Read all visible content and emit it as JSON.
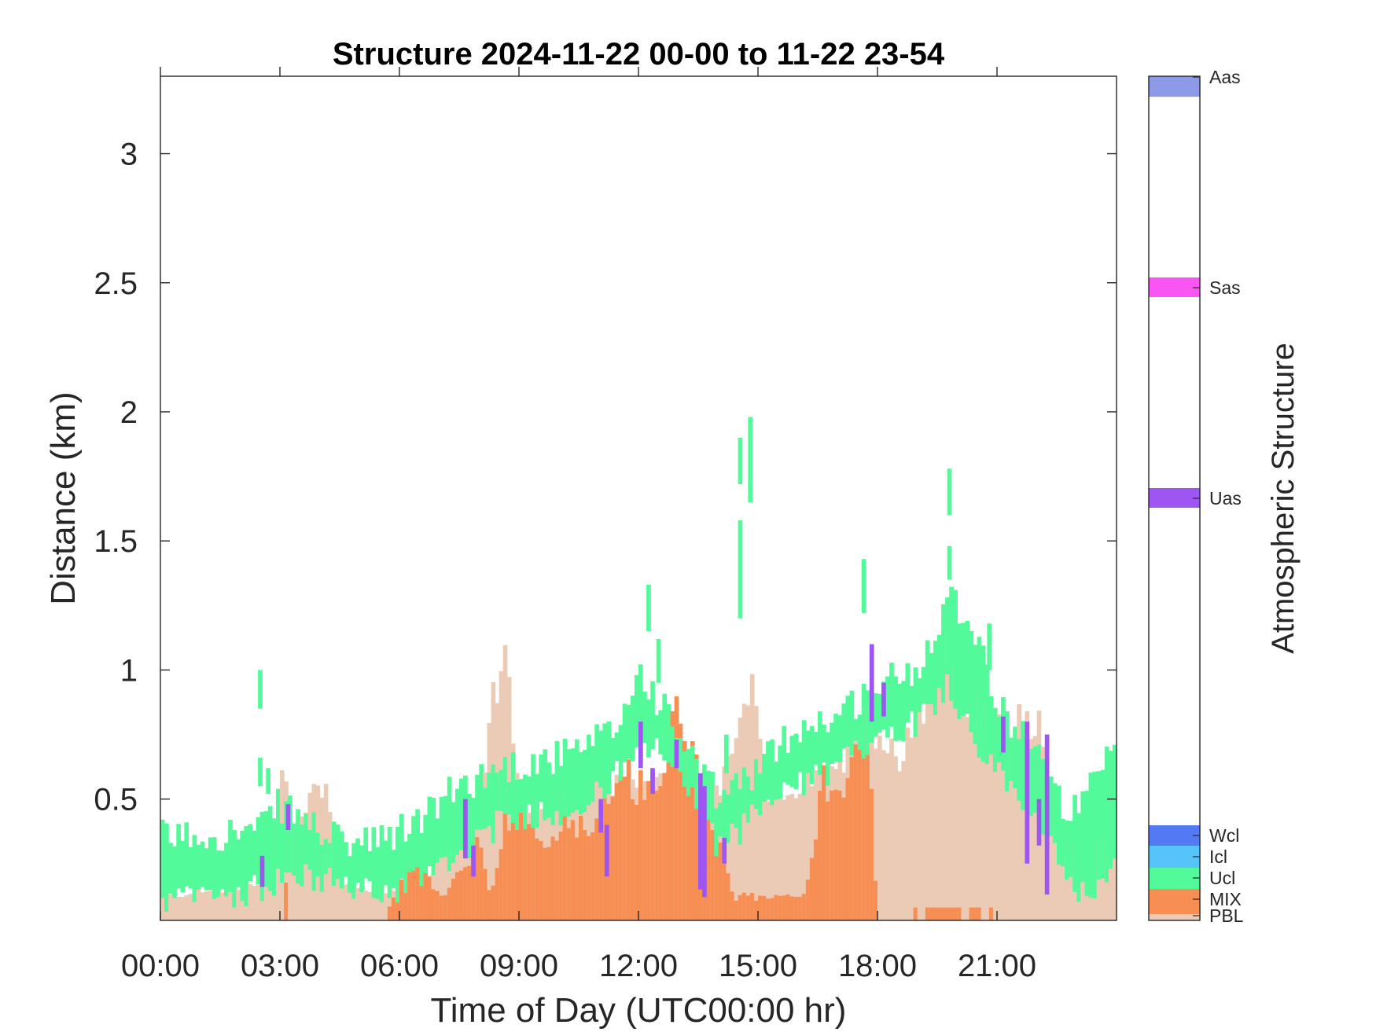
{
  "chart_data": {
    "type": "heatmap",
    "title": "Structure 2024-11-22 00-00 to 11-22 23-54",
    "xlabel": "Time of Day (UTC00:00 hr)",
    "ylabel": "Distance (km)",
    "colorbar_label": "Atmospheric Structure",
    "x_unit": "hours",
    "xlim": [
      0,
      24
    ],
    "ylim": [
      0.03,
      3.3
    ],
    "x_ticks": [
      0,
      3,
      6,
      9,
      12,
      15,
      18,
      21
    ],
    "x_tick_labels": [
      "00:00",
      "03:00",
      "06:00",
      "09:00",
      "12:00",
      "15:00",
      "18:00",
      "21:00"
    ],
    "y_ticks": [
      0.5,
      1,
      1.5,
      2,
      2.5,
      3
    ],
    "y_tick_labels": [
      "0.5",
      "1",
      "1.5",
      "2",
      "2.5",
      "3"
    ],
    "time_step_hours": 0.1,
    "grid": false,
    "classes": [
      {
        "name": "PBL",
        "color": "#EBCBB6"
      },
      {
        "name": "MIX",
        "color": "#F78F54"
      },
      {
        "name": "Ucl",
        "color": "#52FA9A"
      },
      {
        "name": "Icl",
        "color": "#57C4F9"
      },
      {
        "name": "Wcl",
        "color": "#537AF2"
      },
      {
        "name": "Uas",
        "color": "#9F55F2"
      },
      {
        "name": "Sas",
        "color": "#F955F2"
      },
      {
        "name": "Aas",
        "color": "#8C9AE7"
      }
    ],
    "colorbar_ticks": [
      "PBL",
      "MIX",
      "Ucl",
      "Icl",
      "Wcl",
      "Uas",
      "Sas",
      "Aas"
    ],
    "pbl_height_km": [
      [
        0,
        0.12
      ],
      [
        1,
        0.14
      ],
      [
        2,
        0.15
      ],
      [
        2.8,
        0.2
      ],
      [
        3.1,
        0.68
      ],
      [
        3.3,
        0.35
      ],
      [
        3.9,
        0.58
      ],
      [
        4.2,
        0.52
      ],
      [
        4.6,
        0.18
      ],
      [
        5.5,
        0.12
      ],
      [
        6.5,
        0.18
      ],
      [
        7.5,
        0.35
      ],
      [
        8.1,
        0.45
      ],
      [
        8.3,
        0.85
      ],
      [
        8.7,
        1.1
      ],
      [
        9.0,
        0.48
      ],
      [
        10,
        0.5
      ],
      [
        11,
        0.55
      ],
      [
        12,
        0.55
      ],
      [
        13,
        0.62
      ],
      [
        14,
        0.52
      ],
      [
        14.8,
        0.95
      ],
      [
        15.2,
        0.52
      ],
      [
        16,
        0.55
      ],
      [
        17,
        0.6
      ],
      [
        17.8,
        0.8
      ],
      [
        18.5,
        0.65
      ],
      [
        19,
        0.85
      ],
      [
        19.5,
        0.92
      ],
      [
        19.8,
        1.25
      ],
      [
        20.2,
        0.82
      ],
      [
        20.8,
        0.95
      ],
      [
        21.2,
        0.65
      ],
      [
        21.6,
        0.82
      ],
      [
        22.1,
        0.8
      ],
      [
        22.5,
        0.4
      ],
      [
        23.4,
        0.25
      ],
      [
        24,
        0.5
      ]
    ],
    "mix_height_km": [
      [
        0,
        0.0
      ],
      [
        3.05,
        0.0
      ],
      [
        3.1,
        0.35
      ],
      [
        3.2,
        0.0
      ],
      [
        5.6,
        0.0
      ],
      [
        5.8,
        0.1
      ],
      [
        6.5,
        0.3
      ],
      [
        7.0,
        0.12
      ],
      [
        7.5,
        0.2
      ],
      [
        8.0,
        0.32
      ],
      [
        8.3,
        0.12
      ],
      [
        8.6,
        0.4
      ],
      [
        9.2,
        0.45
      ],
      [
        9.6,
        0.3
      ],
      [
        10.2,
        0.45
      ],
      [
        10.8,
        0.35
      ],
      [
        11.4,
        0.62
      ],
      [
        12.0,
        0.55
      ],
      [
        12.6,
        0.65
      ],
      [
        13.1,
        0.9
      ],
      [
        13.3,
        0.68
      ],
      [
        13.6,
        0.55
      ],
      [
        14.0,
        0.38
      ],
      [
        14.4,
        0.12
      ],
      [
        16.2,
        0.12
      ],
      [
        16.6,
        0.55
      ],
      [
        17.3,
        0.6
      ],
      [
        17.8,
        0.8
      ],
      [
        18.0,
        0.0
      ],
      [
        24,
        0.0
      ]
    ],
    "ucl_band_km": [
      [
        0,
        0.1,
        0.35
      ],
      [
        2.5,
        0.15,
        0.38
      ],
      [
        3.0,
        0.2,
        0.48
      ],
      [
        4.5,
        0.18,
        0.33
      ],
      [
        5.5,
        0.12,
        0.33
      ],
      [
        6.5,
        0.2,
        0.42
      ],
      [
        7.5,
        0.3,
        0.55
      ],
      [
        8.5,
        0.4,
        0.62
      ],
      [
        9.5,
        0.45,
        0.65
      ],
      [
        10.5,
        0.45,
        0.68
      ],
      [
        11.5,
        0.6,
        0.78
      ],
      [
        12.0,
        0.65,
        1.0
      ],
      [
        12.5,
        0.7,
        0.88
      ],
      [
        13.5,
        0.5,
        0.62
      ],
      [
        14.0,
        0.3,
        0.5
      ],
      [
        15.0,
        0.45,
        0.62
      ],
      [
        16.0,
        0.55,
        0.78
      ],
      [
        17.0,
        0.62,
        0.82
      ],
      [
        18.0,
        0.75,
        0.95
      ],
      [
        19.0,
        0.8,
        1.0
      ],
      [
        19.8,
        0.95,
        1.3
      ],
      [
        20.5,
        0.7,
        1.15
      ],
      [
        21.0,
        0.6,
        0.85
      ],
      [
        22.0,
        0.45,
        0.72
      ],
      [
        22.5,
        0.25,
        0.5
      ],
      [
        23.0,
        0.1,
        0.45
      ],
      [
        24,
        0.25,
        0.7
      ]
    ],
    "ucl_patches_km": [
      [
        2.45,
        0.85,
        1.0
      ],
      [
        2.45,
        0.55,
        0.66
      ],
      [
        2.65,
        0.52,
        0.62
      ],
      [
        12.2,
        1.15,
        1.33
      ],
      [
        12.45,
        0.95,
        1.12
      ],
      [
        14.5,
        1.72,
        1.9
      ],
      [
        14.75,
        1.65,
        1.98
      ],
      [
        14.5,
        1.2,
        1.58
      ],
      [
        14.15,
        0.6,
        0.75
      ],
      [
        17.6,
        1.22,
        1.43
      ],
      [
        19.75,
        1.6,
        1.78
      ],
      [
        19.75,
        1.35,
        1.48
      ],
      [
        20.75,
        1.0,
        1.18
      ]
    ],
    "uas_patches_km": [
      [
        2.5,
        0.16,
        0.28
      ],
      [
        3.15,
        0.38,
        0.48
      ],
      [
        7.6,
        0.27,
        0.5
      ],
      [
        7.8,
        0.2,
        0.32
      ],
      [
        11.0,
        0.37,
        0.5
      ],
      [
        11.15,
        0.2,
        0.4
      ],
      [
        12.0,
        0.62,
        0.8
      ],
      [
        12.3,
        0.52,
        0.62
      ],
      [
        12.9,
        0.62,
        0.73
      ],
      [
        13.5,
        0.15,
        0.6
      ],
      [
        13.6,
        0.12,
        0.55
      ],
      [
        14.1,
        0.25,
        0.35
      ],
      [
        17.8,
        0.8,
        1.1
      ],
      [
        18.1,
        0.82,
        0.95
      ],
      [
        21.1,
        0.68,
        0.82
      ],
      [
        21.7,
        0.25,
        0.8
      ],
      [
        22.0,
        0.32,
        0.5
      ],
      [
        22.2,
        0.13,
        0.75
      ]
    ],
    "mix_floor_segments": [
      [
        18.9,
        19.0,
        0.08
      ],
      [
        19.2,
        20.1,
        0.08
      ],
      [
        20.3,
        20.6,
        0.08
      ],
      [
        20.8,
        20.9,
        0.08
      ]
    ]
  }
}
